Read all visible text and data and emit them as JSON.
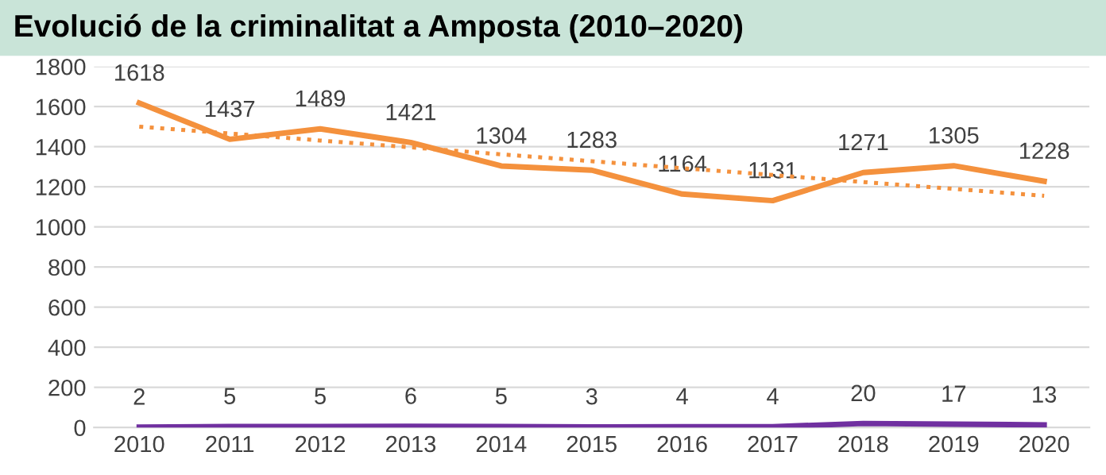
{
  "chart_data": {
    "type": "line",
    "title": "Evolució de la criminalitat a Amposta (2010–2020)",
    "categories": [
      "2010",
      "2011",
      "2012",
      "2013",
      "2014",
      "2015",
      "2016",
      "2017",
      "2018",
      "2019",
      "2020"
    ],
    "series": [
      {
        "color": "#f4913d",
        "values": [
          1618,
          1437,
          1489,
          1421,
          1304,
          1283,
          1164,
          1131,
          1271,
          1305,
          1228
        ]
      },
      {
        "color": "#7030a0",
        "values": [
          2,
          5,
          5,
          6,
          5,
          3,
          4,
          4,
          20,
          17,
          13
        ]
      },
      {
        "type": "line",
        "color": "#f4913d",
        "line_style": "dotted",
        "values": [
          1500,
          1466,
          1431,
          1397,
          1362,
          1328,
          1293,
          1259,
          1224,
          1190,
          1155
        ],
        "data_labels": false
      }
    ],
    "ylim": [
      0,
      1800
    ],
    "yticks": [
      0,
      200,
      400,
      600,
      800,
      1000,
      1200,
      1400,
      1600,
      1800
    ],
    "grid": "y",
    "legend": false,
    "marker": "none",
    "line_style": "solid",
    "data_labels": true
  }
}
